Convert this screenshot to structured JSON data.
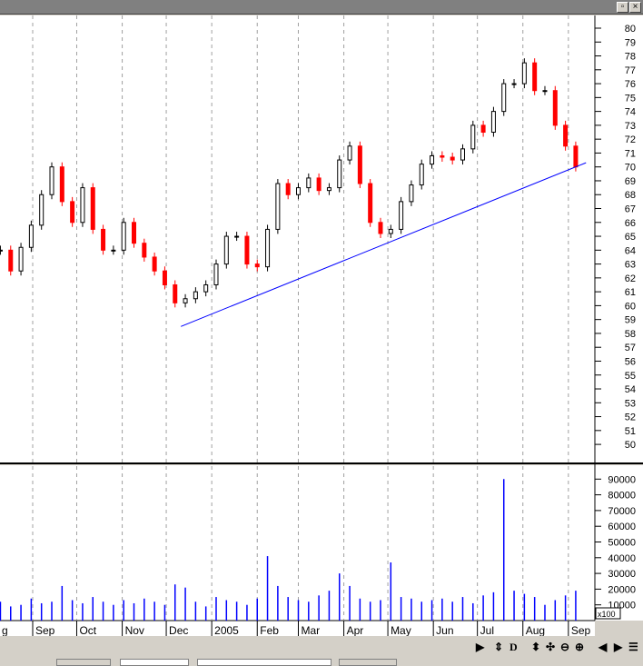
{
  "window": {
    "maximize_icon": "maximize-icon",
    "close_icon": "close-icon",
    "close_label": "×"
  },
  "colors": {
    "up": "#000000",
    "down": "#ff0000",
    "volume": "#0000ff",
    "trendline": "#0000ff",
    "grid": "#a0a0a0"
  },
  "chart_data": [
    {
      "type": "candlestick",
      "interval": "weekly",
      "start": "2004-08-10",
      "ylim": [
        49,
        81
      ],
      "yticks": [
        50,
        51,
        52,
        53,
        54,
        55,
        56,
        57,
        58,
        59,
        60,
        61,
        62,
        63,
        64,
        65,
        66,
        67,
        68,
        69,
        70,
        71,
        72,
        73,
        74,
        75,
        76,
        77,
        78,
        79,
        80
      ],
      "close": [
        64,
        62.5,
        64.2,
        65.8,
        68,
        70,
        67.5,
        66,
        68.5,
        65.5,
        64,
        64,
        66,
        64.5,
        63.5,
        62.5,
        61.5,
        60.2,
        60.5,
        61,
        61.5,
        63,
        65,
        65,
        63,
        62.8,
        65.5,
        68.8,
        68,
        68.5,
        69.2,
        68.3,
        68.5,
        70.5,
        71.5,
        68.8,
        66,
        65.2,
        65.5,
        67.5,
        68.7,
        70.2,
        70.8,
        70.7,
        70.5,
        71.3,
        73,
        72.5,
        74,
        76,
        76,
        77.5,
        75.5,
        75.5,
        73,
        71.5,
        70
      ],
      "trendline": {
        "from": {
          "date": "2004-12-11",
          "price": 58.5
        },
        "to": {
          "date": "2005-09-13",
          "price": 70.3
        }
      },
      "grid": "vertical dashed at month starts"
    },
    {
      "type": "bar",
      "series": "volume",
      "multiplier_label": "x100",
      "ylim": [
        0,
        95000
      ],
      "yticks": [
        10000,
        20000,
        30000,
        40000,
        50000,
        60000,
        70000,
        80000,
        90000
      ],
      "values": [
        12000,
        9000,
        10000,
        14000,
        11000,
        12000,
        22000,
        13000,
        11000,
        15000,
        12000,
        10000,
        13000,
        11000,
        14000,
        12000,
        10000,
        23000,
        21000,
        12000,
        9000,
        15000,
        13000,
        12000,
        10000,
        14000,
        41000,
        22000,
        15000,
        13000,
        12000,
        16000,
        19000,
        30000,
        22000,
        14000,
        12000,
        13000,
        37000,
        15000,
        14000,
        12000,
        13000,
        14000,
        12000,
        15000,
        11000,
        16000,
        18000,
        90000,
        19000,
        17000,
        15000,
        10000,
        13000,
        16000,
        19000
      ]
    }
  ],
  "xaxis": {
    "months": [
      {
        "label": "g",
        "date": "2004-08-01"
      },
      {
        "label": "Sep",
        "date": "2004-09-01"
      },
      {
        "label": "Oct",
        "date": "2004-10-01"
      },
      {
        "label": "Nov",
        "date": "2004-11-01"
      },
      {
        "label": "Dec",
        "date": "2004-12-01"
      },
      {
        "label": "2005",
        "date": "2005-01-01"
      },
      {
        "label": "Feb",
        "date": "2005-02-01"
      },
      {
        "label": "Mar",
        "date": "2005-03-01"
      },
      {
        "label": "Apr",
        "date": "2005-04-01"
      },
      {
        "label": "May",
        "date": "2005-05-01"
      },
      {
        "label": "Jun",
        "date": "2005-06-01"
      },
      {
        "label": "Jul",
        "date": "2005-07-01"
      },
      {
        "label": "Aug",
        "date": "2005-08-01"
      },
      {
        "label": "Sep",
        "date": "2005-09-01"
      }
    ]
  },
  "toolbar": {
    "play": "▶",
    "refresh": "⇕",
    "d": "D",
    "updown": "⬍",
    "move": "✣",
    "zoom_out": "⊖",
    "zoom_in": "⊕",
    "prev": "◀",
    "next": "▶",
    "menu": "☰"
  }
}
